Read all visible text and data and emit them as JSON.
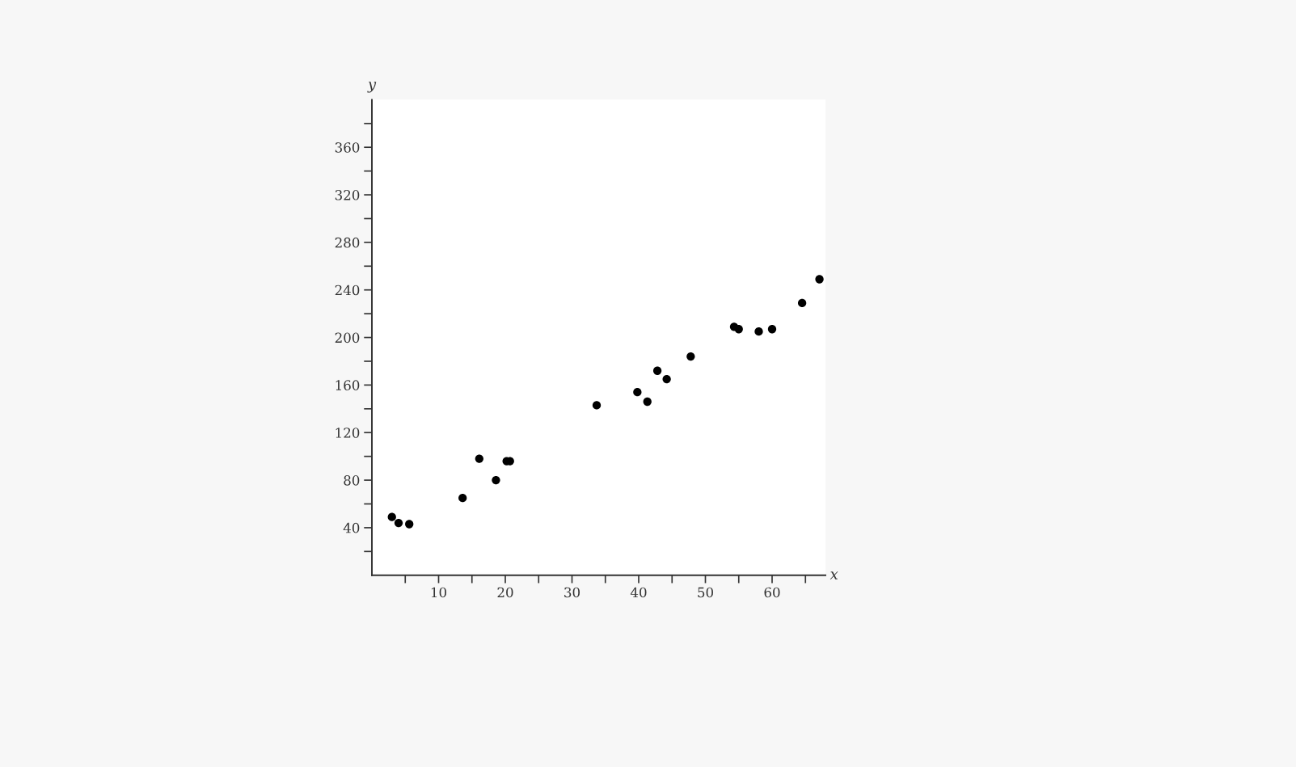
{
  "chart_data": {
    "type": "scatter",
    "xlabel": "x",
    "ylabel": "y",
    "color": "#000000",
    "marker": "circle",
    "grid": false,
    "legend": false,
    "x": [
      3.0,
      4.0,
      5.6,
      13.6,
      16.1,
      18.6,
      20.2,
      20.7,
      33.7,
      39.8,
      41.3,
      42.8,
      44.2,
      47.8,
      54.3,
      55.0,
      58.0,
      60.0,
      64.5,
      67.1
    ],
    "values": [
      49,
      44,
      43,
      65,
      98,
      80,
      96,
      96,
      143,
      154,
      146,
      172,
      165,
      184,
      209,
      207,
      205,
      207,
      229,
      249
    ],
    "xlim": [
      0,
      68
    ],
    "ylim": [
      0,
      400
    ],
    "xticks": [
      {
        "value": 5,
        "label": null
      },
      10,
      {
        "value": 15,
        "label": null
      },
      20,
      {
        "value": 25,
        "label": null
      },
      30,
      {
        "value": 35,
        "label": null
      },
      40,
      {
        "value": 45,
        "label": null
      },
      50,
      {
        "value": 55,
        "label": null
      },
      60,
      {
        "value": 65,
        "label": null
      }
    ],
    "yticks": [
      {
        "value": 20,
        "label": null
      },
      40,
      {
        "value": 60,
        "label": null
      },
      80,
      {
        "value": 100,
        "label": null
      },
      120,
      {
        "value": 140,
        "label": null
      },
      160,
      {
        "value": 180,
        "label": null
      },
      200,
      {
        "value": 220,
        "label": null
      },
      240,
      {
        "value": 260,
        "label": null
      },
      280,
      {
        "value": 300,
        "label": null
      },
      320,
      {
        "value": 340,
        "label": null
      },
      360,
      {
        "value": 380,
        "label": null
      }
    ]
  }
}
